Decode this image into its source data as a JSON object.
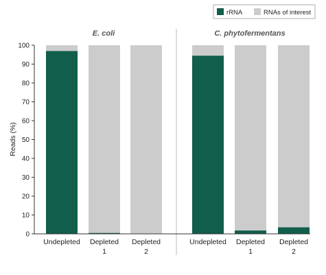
{
  "colors": {
    "rrna": "#115e4c",
    "interest": "#cccccc",
    "axis": "#333333",
    "divider": "#bbbbbb"
  },
  "chart_data": {
    "type": "bar",
    "stacked": true,
    "ylabel": "Reads (%)",
    "ylim": [
      0,
      100
    ],
    "yticks": [
      0,
      10,
      20,
      30,
      40,
      50,
      60,
      70,
      80,
      90,
      100
    ],
    "legend": {
      "placement": "top-right",
      "entries": [
        {
          "label": "rRNA",
          "color": "#115e4c"
        },
        {
          "label": "RNAs of interest",
          "color": "#cccccc"
        }
      ]
    },
    "panels": [
      {
        "title": "E. coli",
        "categories": [
          {
            "line1": "Undepleted",
            "line2": ""
          },
          {
            "line1": "Depleted",
            "line2": "1"
          },
          {
            "line1": "Depleted",
            "line2": "2"
          }
        ],
        "series": [
          {
            "name": "rRNA",
            "values": [
              97,
              0.5,
              0.2
            ]
          },
          {
            "name": "RNAs of interest",
            "values": [
              3,
              99.5,
              99.8
            ]
          }
        ]
      },
      {
        "title": "C. phytofermentans",
        "categories": [
          {
            "line1": "Undepleted",
            "line2": ""
          },
          {
            "line1": "Depleted",
            "line2": "1"
          },
          {
            "line1": "Depleted",
            "line2": "2"
          }
        ],
        "series": [
          {
            "name": "rRNA",
            "values": [
              94.5,
              1.8,
              3.5
            ]
          },
          {
            "name": "RNAs of interest",
            "values": [
              5.5,
              98.2,
              96.5
            ]
          }
        ]
      }
    ]
  }
}
